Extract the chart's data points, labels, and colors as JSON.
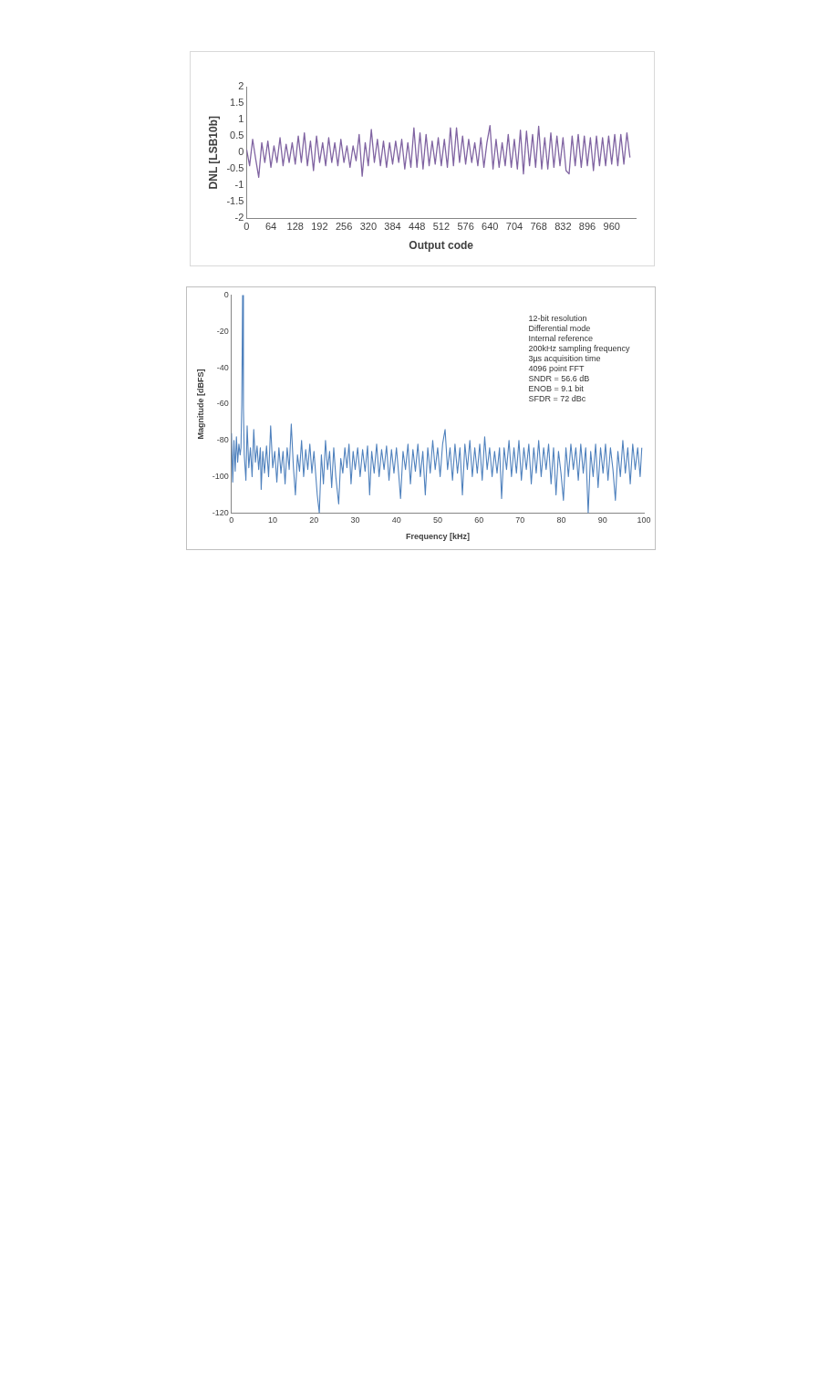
{
  "chart_data": [
    {
      "type": "line",
      "xlabel": "Output code",
      "ylabel": "DNL [LSB10b]",
      "color": "#8064a2",
      "grid": false,
      "xlim": [
        0,
        1023
      ],
      "xticks": [
        0,
        64,
        128,
        192,
        256,
        320,
        384,
        448,
        512,
        576,
        640,
        704,
        768,
        832,
        896,
        960
      ],
      "ylim": [
        -2,
        2
      ],
      "yticks": [
        -2,
        -1.5,
        -1,
        -0.5,
        0,
        0.5,
        1,
        1.5,
        2
      ],
      "x": [
        0,
        8,
        16,
        24,
        32,
        40,
        48,
        56,
        64,
        72,
        80,
        88,
        96,
        104,
        112,
        120,
        128,
        136,
        144,
        152,
        160,
        168,
        176,
        184,
        192,
        200,
        208,
        216,
        224,
        232,
        240,
        248,
        256,
        264,
        272,
        280,
        288,
        296,
        304,
        312,
        320,
        328,
        336,
        344,
        352,
        360,
        368,
        376,
        384,
        392,
        400,
        408,
        416,
        424,
        432,
        440,
        448,
        456,
        464,
        472,
        480,
        488,
        496,
        504,
        512,
        520,
        528,
        536,
        544,
        552,
        560,
        568,
        576,
        584,
        592,
        600,
        608,
        616,
        624,
        632,
        640,
        648,
        656,
        664,
        672,
        680,
        688,
        696,
        704,
        712,
        720,
        728,
        736,
        744,
        752,
        760,
        768,
        776,
        784,
        792,
        800,
        808,
        816,
        824,
        832,
        840,
        848,
        856,
        864,
        872,
        880,
        888,
        896,
        904,
        912,
        920,
        928,
        936,
        944,
        952,
        960,
        968,
        976,
        984,
        992,
        1000,
        1008
      ],
      "values": [
        0.1,
        -0.4,
        0.4,
        -0.2,
        -0.75,
        0.3,
        -0.3,
        0.35,
        -0.45,
        0.2,
        -0.3,
        0.45,
        -0.4,
        0.25,
        -0.3,
        0.3,
        -0.35,
        0.5,
        -0.3,
        0.6,
        -0.4,
        0.35,
        -0.55,
        0.5,
        -0.3,
        0.3,
        -0.4,
        0.45,
        -0.3,
        0.3,
        -0.4,
        0.4,
        -0.3,
        0.2,
        -0.45,
        0.2,
        -0.25,
        0.55,
        -0.72,
        0.3,
        -0.4,
        0.7,
        -0.3,
        0.4,
        -0.4,
        0.35,
        -0.45,
        0.3,
        -0.35,
        0.35,
        -0.3,
        0.4,
        -0.5,
        0.3,
        -0.45,
        0.75,
        -0.45,
        0.6,
        -0.5,
        0.55,
        -0.4,
        0.35,
        -0.35,
        0.45,
        -0.4,
        0.4,
        -0.45,
        0.75,
        -0.4,
        0.75,
        -0.3,
        0.5,
        -0.35,
        0.4,
        -0.3,
        0.3,
        -0.4,
        0.45,
        -0.45,
        0.3,
        0.82,
        -0.5,
        0.4,
        -0.45,
        0.3,
        -0.4,
        0.55,
        -0.45,
        0.4,
        -0.5,
        0.68,
        -0.65,
        0.65,
        -0.4,
        0.55,
        -0.45,
        0.8,
        -0.5,
        0.45,
        -0.5,
        0.6,
        -0.45,
        0.5,
        -0.4,
        0.45,
        -0.55,
        -0.65,
        0.5,
        -0.4,
        0.55,
        -0.45,
        0.5,
        -0.4,
        0.45,
        -0.55,
        0.5,
        -0.4,
        0.45,
        -0.4,
        0.5,
        -0.35,
        0.55,
        -0.4,
        0.55,
        -0.35,
        0.6,
        -0.15
      ]
    },
    {
      "type": "line",
      "xlabel": "Frequency [kHz]",
      "ylabel": "Magnitude [dBFS]",
      "color": "#4f81bd",
      "grid": false,
      "xlim": [
        0,
        100
      ],
      "xticks": [
        0,
        10,
        20,
        30,
        40,
        50,
        60,
        70,
        80,
        90,
        100
      ],
      "ylim": [
        -120,
        0
      ],
      "yticks": [
        -120,
        -100,
        -80,
        -60,
        -40,
        -20,
        0
      ],
      "annotations": [
        "12-bit resolution",
        "Differential mode",
        "Internal reference",
        "200kHz sampling frequency",
        "3µs acquisition time",
        "4096 point FFT",
        "SNDR = 56.6 dB",
        "ENOB = 9.1 bit",
        "SFDR = 72 dBc"
      ],
      "x": [
        0,
        0.3,
        0.6,
        0.9,
        1.2,
        1.5,
        1.8,
        2.1,
        2.3,
        2.5,
        2.7,
        2.9,
        3.1,
        3.5,
        3.8,
        4.2,
        4.6,
        5,
        5.4,
        5.8,
        6.2,
        6.6,
        7,
        7.2,
        7.6,
        8,
        8.5,
        9,
        9.5,
        10,
        10.5,
        11,
        11.5,
        12,
        12.5,
        13,
        13.5,
        14,
        14.5,
        15,
        15.5,
        16,
        16.5,
        17,
        17.5,
        18,
        18.5,
        19,
        19.5,
        20,
        20.8,
        21.3,
        21.8,
        22.3,
        22.8,
        23.3,
        23.8,
        24.3,
        24.8,
        25.3,
        26,
        26.5,
        27,
        27.5,
        28,
        28.5,
        29,
        29.5,
        30,
        30.6,
        31.2,
        31.8,
        32.4,
        33,
        33.5,
        34,
        34.6,
        35.2,
        35.8,
        36.4,
        37,
        37.6,
        38.2,
        38.8,
        39.4,
        40,
        40.6,
        41,
        41.6,
        42.2,
        42.8,
        43.4,
        44,
        44.6,
        45.2,
        45.8,
        46.4,
        47,
        47.6,
        48.2,
        48.8,
        49.4,
        50,
        50.6,
        51.2,
        51.8,
        52.4,
        53,
        53.6,
        54.2,
        54.8,
        55.4,
        56,
        56.6,
        57.2,
        57.8,
        58.4,
        59,
        59.6,
        60.2,
        60.8,
        61.4,
        62,
        62.6,
        63.2,
        63.8,
        64.4,
        65,
        65.5,
        66.1,
        66.7,
        67.3,
        67.9,
        68.5,
        69.1,
        69.7,
        70.3,
        70.9,
        71.5,
        72.1,
        72.7,
        73.3,
        73.9,
        74.5,
        75.1,
        75.7,
        76.3,
        76.9,
        77.5,
        78.1,
        78.7,
        79.3,
        79.9,
        80.5,
        81.1,
        81.7,
        82.3,
        82.9,
        83.5,
        84.1,
        84.7,
        85.3,
        85.9,
        86.5,
        87.1,
        87.7,
        88.3,
        88.9,
        89.5,
        90.1,
        90.7,
        91.3,
        91.9,
        92.5,
        93.1,
        93.7,
        94.3,
        94.9,
        95.5,
        96.1,
        96.7,
        97.3,
        97.9,
        98.5,
        99.1,
        99.5
      ],
      "values": [
        -76,
        -103,
        -80,
        -97,
        -78,
        -92,
        -82,
        -88,
        -84,
        -60,
        0,
        -62,
        -88,
        -102,
        -72,
        -95,
        -84,
        -100,
        -74,
        -92,
        -83,
        -96,
        -84,
        -107,
        -86,
        -98,
        -83,
        -100,
        -72,
        -95,
        -86,
        -103,
        -84,
        -98,
        -86,
        -104,
        -84,
        -96,
        -71,
        -94,
        -110,
        -88,
        -97,
        -80,
        -100,
        -85,
        -96,
        -82,
        -98,
        -86,
        -110,
        -120,
        -88,
        -104,
        -80,
        -96,
        -86,
        -106,
        -84,
        -100,
        -115,
        -90,
        -98,
        -84,
        -95,
        -82,
        -104,
        -86,
        -96,
        -84,
        -100,
        -85,
        -97,
        -83,
        -110,
        -86,
        -98,
        -82,
        -100,
        -85,
        -96,
        -83,
        -102,
        -85,
        -98,
        -84,
        -100,
        -112,
        -86,
        -96,
        -82,
        -104,
        -85,
        -97,
        -82,
        -100,
        -86,
        -110,
        -84,
        -98,
        -80,
        -96,
        -84,
        -100,
        -82,
        -74,
        -96,
        -84,
        -102,
        -82,
        -98,
        -84,
        -110,
        -82,
        -96,
        -80,
        -100,
        -84,
        -98,
        -82,
        -102,
        -78,
        -96,
        -84,
        -100,
        -86,
        -98,
        -84,
        -112,
        -84,
        -96,
        -80,
        -100,
        -84,
        -98,
        -80,
        -102,
        -84,
        -96,
        -82,
        -104,
        -84,
        -98,
        -80,
        -100,
        -84,
        -96,
        -82,
        -104,
        -84,
        -110,
        -86,
        -98,
        -113,
        -84,
        -100,
        -82,
        -96,
        -84,
        -102,
        -82,
        -98,
        -84,
        -120,
        -86,
        -100,
        -82,
        -106,
        -84,
        -98,
        -82,
        -102,
        -84,
        -96,
        -113,
        -86,
        -100,
        -80,
        -98,
        -84,
        -104,
        -82,
        -96,
        -84,
        -100,
        -84
      ]
    }
  ]
}
